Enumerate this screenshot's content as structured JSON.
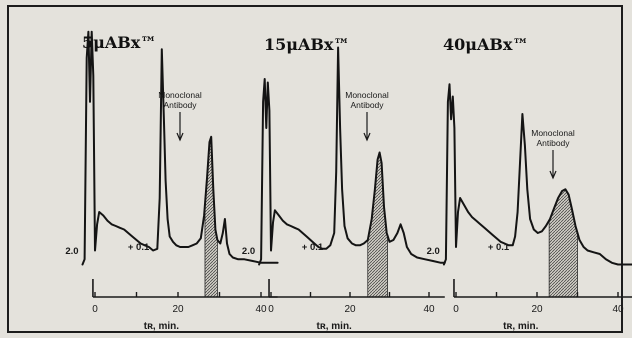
{
  "chart_data": [
    {
      "type": "line",
      "title": "5μABx™",
      "xlabel": "tʀ, min.",
      "xlim": [
        -3,
        44
      ],
      "xticks": [
        "0",
        "20",
        "40"
      ],
      "scale_labels": [
        "2.0",
        "+ 0.1"
      ],
      "annotation": [
        "Monoclonal",
        "Antibody"
      ],
      "shaded_x": [
        26.5,
        29.5
      ],
      "series": [
        {
          "x": [
            -3,
            -2.5,
            -2,
            -1.6,
            -1.2,
            -0.8,
            -0.4,
            0,
            0.5,
            1,
            2,
            3,
            4,
            5,
            6,
            7,
            8,
            9,
            10,
            11,
            12,
            13,
            14,
            15,
            15.6,
            16.1,
            16.6,
            17,
            17.5,
            18,
            18.8,
            19.6,
            20.5,
            21.5,
            22.5,
            23.5,
            24.5,
            25.5,
            26.3,
            27,
            27.6,
            28,
            28.5,
            29,
            29.5,
            30.2,
            30.8,
            31.3,
            31.8,
            32.4,
            33.2,
            34.5,
            36,
            38,
            40,
            42,
            44
          ],
          "y": [
            0.02,
            0.05,
            1.2,
            1.35,
            0.95,
            1.35,
            1.1,
            0.1,
            0.25,
            0.32,
            0.3,
            0.27,
            0.25,
            0.24,
            0.23,
            0.22,
            0.2,
            0.18,
            0.16,
            0.14,
            0.13,
            0.12,
            0.1,
            0.11,
            0.4,
            1.25,
            0.85,
            0.5,
            0.28,
            0.18,
            0.15,
            0.13,
            0.12,
            0.12,
            0.12,
            0.13,
            0.14,
            0.17,
            0.3,
            0.52,
            0.72,
            0.75,
            0.45,
            0.22,
            0.16,
            0.14,
            0.2,
            0.28,
            0.14,
            0.08,
            0.06,
            0.05,
            0.05,
            0.04,
            0.03,
            0.03,
            0.03
          ]
        }
      ]
    },
    {
      "type": "line",
      "title": "15μABx™",
      "xlabel": "tʀ, min.",
      "xlim": [
        -3,
        44
      ],
      "xticks": [
        "0",
        "20",
        "40"
      ],
      "scale_labels": [
        "2.0",
        "+ 0.1"
      ],
      "annotation": [
        "Monoclonal",
        "Antibody"
      ],
      "shaded_x": [
        24.5,
        29.5
      ],
      "series": [
        {
          "x": [
            -3,
            -2.5,
            -2,
            -1.6,
            -1.2,
            -0.8,
            -0.4,
            0,
            0.5,
            1,
            2,
            3,
            4,
            5,
            6,
            7,
            8,
            9,
            10,
            11,
            12,
            13,
            14,
            15,
            16,
            16.5,
            17,
            17.5,
            18,
            18.6,
            19.4,
            20.5,
            21.5,
            22.5,
            23.5,
            24.5,
            25.5,
            26.3,
            27,
            27.5,
            28,
            28.6,
            29.3,
            30,
            31,
            32,
            32.8,
            33.6,
            34.4,
            35.5,
            37,
            39,
            41,
            43,
            44
          ],
          "y": [
            0.02,
            0.05,
            0.95,
            1.08,
            0.8,
            1.06,
            0.9,
            0.1,
            0.26,
            0.33,
            0.3,
            0.27,
            0.25,
            0.24,
            0.23,
            0.22,
            0.2,
            0.18,
            0.16,
            0.14,
            0.12,
            0.11,
            0.11,
            0.13,
            0.2,
            0.55,
            1.26,
            0.8,
            0.45,
            0.24,
            0.17,
            0.14,
            0.13,
            0.13,
            0.14,
            0.16,
            0.28,
            0.45,
            0.62,
            0.66,
            0.6,
            0.35,
            0.2,
            0.15,
            0.16,
            0.2,
            0.25,
            0.2,
            0.12,
            0.08,
            0.06,
            0.05,
            0.04,
            0.03,
            0.03
          ]
        }
      ]
    },
    {
      "type": "line",
      "title": "40μABx™",
      "xlabel": "tʀ, min.",
      "xlim": [
        -3,
        44
      ],
      "xticks": [
        "0",
        "20",
        "40"
      ],
      "scale_labels": [
        "2.0",
        "+ 0.1"
      ],
      "annotation": [
        "Monoclonal",
        "Antibody"
      ],
      "shaded_x": [
        23,
        30
      ],
      "series": [
        {
          "x": [
            -3,
            -2.5,
            -2,
            -1.6,
            -1.2,
            -0.8,
            -0.4,
            0,
            0.5,
            1,
            2,
            3,
            4,
            5,
            6,
            7,
            8,
            9,
            10,
            11,
            12,
            13,
            14,
            14.6,
            15.2,
            15.8,
            16.4,
            17,
            17.6,
            18.3,
            19.2,
            20.2,
            21.2,
            22.2,
            23.2,
            24.2,
            25.2,
            26.2,
            27,
            27.8,
            28.6,
            29.5,
            30.5,
            31.5,
            32.5,
            34,
            35.5,
            37,
            38.5,
            40,
            42,
            44
          ],
          "y": [
            0.02,
            0.05,
            0.95,
            1.05,
            0.85,
            0.98,
            0.8,
            0.12,
            0.32,
            0.4,
            0.36,
            0.32,
            0.29,
            0.27,
            0.25,
            0.23,
            0.21,
            0.19,
            0.17,
            0.15,
            0.14,
            0.13,
            0.13,
            0.18,
            0.32,
            0.6,
            0.88,
            0.7,
            0.45,
            0.28,
            0.22,
            0.2,
            0.21,
            0.24,
            0.28,
            0.34,
            0.4,
            0.44,
            0.45,
            0.42,
            0.34,
            0.24,
            0.16,
            0.12,
            0.1,
            0.09,
            0.08,
            0.05,
            0.03,
            0.02,
            0.02,
            0.02
          ]
        }
      ]
    }
  ]
}
